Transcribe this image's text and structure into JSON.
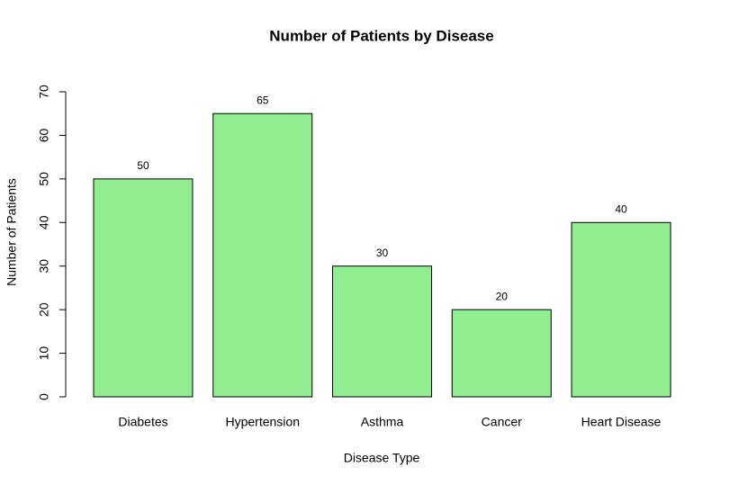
{
  "chart_data": {
    "type": "bar",
    "title": "Number of Patients by Disease",
    "x_label": "Disease Type",
    "y_label": "Number of Patients",
    "categories": [
      "Diabetes",
      "Hypertension",
      "Asthma",
      "Cancer",
      "Heart Disease"
    ],
    "values": [
      50,
      65,
      30,
      20,
      40
    ],
    "color": "#90ee90",
    "ylim": [
      0,
      70
    ],
    "yticks": [
      0,
      10,
      20,
      30,
      40,
      50,
      60,
      70
    ],
    "grid": false
  }
}
